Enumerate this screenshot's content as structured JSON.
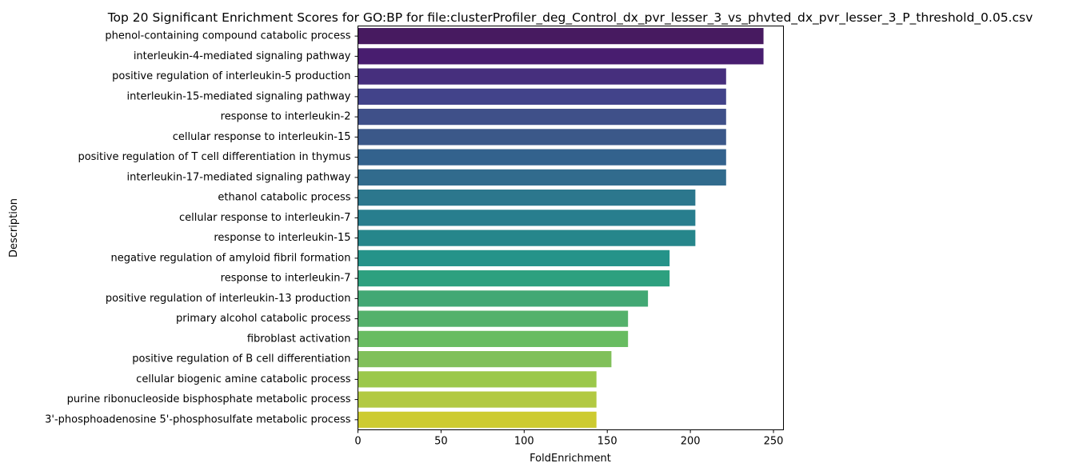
{
  "chart_data": {
    "type": "bar",
    "orientation": "horizontal",
    "title": "Top 20 Significant Enrichment Scores for GO:BP for file:clusterProfiler_deg_Control_dx_pvr_lesser_3_vs_phvted_dx_pvr_lesser_3_P_threshold_0.05.csv",
    "xlabel": "FoldEnrichment",
    "ylabel": "Description",
    "xlim": [
      0,
      256
    ],
    "xticks": [
      0,
      50,
      100,
      150,
      200,
      250
    ],
    "grid": false,
    "legend": "none",
    "palette": "viridis",
    "colors": [
      "#471a60",
      "#481d6f",
      "#462f7d",
      "#42438a",
      "#3f5089",
      "#3b5889",
      "#33628d",
      "#316b8d",
      "#2c778d",
      "#287e8e",
      "#26868b",
      "#259389",
      "#2da07f",
      "#42a874",
      "#54b16b",
      "#68bc61",
      "#80c05a",
      "#9bc84a",
      "#b2c942",
      "#cdcb30"
    ],
    "categories": [
      "phenol-containing compound catabolic process",
      "interleukin-4-mediated signaling pathway",
      "positive regulation of interleukin-5 production",
      "interleukin-15-mediated signaling pathway",
      "response to interleukin-2",
      "cellular response to interleukin-15",
      "positive regulation of T cell differentiation in thymus",
      "interleukin-17-mediated signaling pathway",
      "ethanol catabolic process",
      "cellular response to interleukin-7",
      "response to interleukin-15",
      "negative regulation of amyloid fibril formation",
      "response to interleukin-7",
      "positive regulation of interleukin-13 production",
      "primary alcohol catabolic process",
      "fibroblast activation",
      "positive regulation of B cell differentiation",
      "cellular biogenic amine catabolic process",
      "purine ribonucleoside bisphosphate metabolic process",
      "3'-phosphoadenosine 5'-phosphosulfate metabolic process"
    ],
    "values": [
      244,
      244,
      221.5,
      221.5,
      221.5,
      221.5,
      221.5,
      221.5,
      203,
      203,
      203,
      187.5,
      187.5,
      174.5,
      162.5,
      162.5,
      152.5,
      143.5,
      143.5,
      143.5
    ]
  }
}
